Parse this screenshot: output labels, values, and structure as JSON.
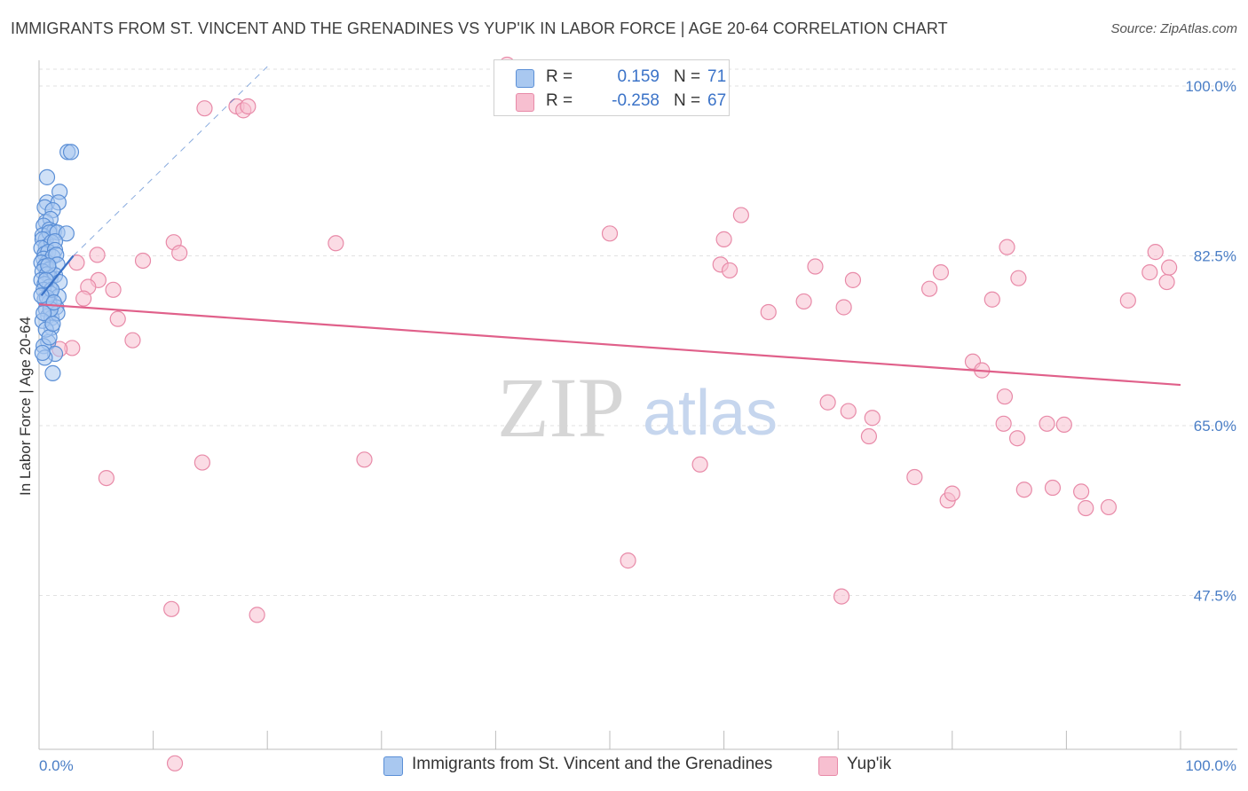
{
  "title": "IMMIGRANTS FROM ST. VINCENT AND THE GRENADINES VS YUP'IK IN LABOR FORCE | AGE 20-64 CORRELATION CHART",
  "source": "Source: ZipAtlas.com",
  "watermark": {
    "zip": "ZIP",
    "atlas": "atlas"
  },
  "legend": {
    "r_label": "R =",
    "n_label": "N =",
    "rows": [
      {
        "r": "0.159",
        "n": "71"
      },
      {
        "r": "-0.258",
        "n": "67"
      }
    ]
  },
  "bottom_legend": [
    "Immigrants from St. Vincent and the Grenadines",
    "Yup'ik"
  ],
  "colors": {
    "blue_fill": "#a9c8f0",
    "blue_stroke": "#5b8fd6",
    "blue_line": "#3b73c8",
    "pink_fill": "#f7bfd0",
    "pink_stroke": "#e88aa8",
    "pink_line": "#e0608a",
    "tick_text": "#4a7ec6",
    "grid": "#e2e2e2"
  },
  "chart_data": {
    "type": "scatter",
    "title": "IMMIGRANTS FROM ST. VINCENT AND THE GRENADINES VS YUP'IK IN LABOR FORCE | AGE 20-64 CORRELATION CHART",
    "xlabel": "",
    "ylabel": "In Labor Force | Age 20-64",
    "xlim": [
      0,
      100
    ],
    "ylim": [
      30,
      102
    ],
    "x_tick_labels": [
      "0.0%",
      "100.0%"
    ],
    "y_ticks": [
      47.5,
      65.0,
      82.5,
      100.0
    ],
    "y_tick_labels": [
      "47.5%",
      "65.0%",
      "82.5%",
      "100.0%"
    ],
    "grid": true,
    "legend_position": "top-center",
    "series": [
      {
        "name": "Immigrants from St. Vincent and the Grenadines",
        "color": "#a9c8f0",
        "points": [
          [
            2.5,
            93.2
          ],
          [
            2.8,
            93.2
          ],
          [
            0.7,
            90.6
          ],
          [
            1.8,
            89.1
          ],
          [
            0.7,
            88.0
          ],
          [
            1.7,
            88.0
          ],
          [
            0.5,
            87.5
          ],
          [
            1.2,
            87.2
          ],
          [
            0.6,
            86.0
          ],
          [
            1.0,
            86.3
          ],
          [
            0.4,
            85.6
          ],
          [
            0.9,
            85.2
          ],
          [
            1.3,
            85.0
          ],
          [
            0.3,
            84.6
          ],
          [
            0.6,
            84.2
          ],
          [
            0.9,
            84.9
          ],
          [
            1.6,
            84.9
          ],
          [
            2.4,
            84.8
          ],
          [
            0.3,
            84.2
          ],
          [
            0.6,
            83.4
          ],
          [
            1.1,
            83.9
          ],
          [
            1.4,
            84.0
          ],
          [
            0.2,
            83.3
          ],
          [
            0.5,
            82.7
          ],
          [
            0.8,
            82.9
          ],
          [
            1.4,
            83.1
          ],
          [
            0.4,
            82.2
          ],
          [
            0.7,
            81.8
          ],
          [
            1.2,
            82.4
          ],
          [
            1.5,
            82.6
          ],
          [
            0.2,
            81.8
          ],
          [
            0.5,
            81.4
          ],
          [
            0.9,
            81.1
          ],
          [
            1.6,
            81.6
          ],
          [
            0.3,
            80.9
          ],
          [
            0.7,
            80.6
          ],
          [
            1.0,
            80.2
          ],
          [
            1.4,
            80.5
          ],
          [
            0.2,
            80.0
          ],
          [
            0.5,
            79.6
          ],
          [
            0.9,
            79.3
          ],
          [
            1.8,
            79.8
          ],
          [
            0.4,
            79.0
          ],
          [
            1.0,
            78.6
          ],
          [
            1.7,
            78.3
          ],
          [
            0.5,
            78.0
          ],
          [
            0.9,
            77.7
          ],
          [
            0.6,
            77.0
          ],
          [
            1.5,
            77.2
          ],
          [
            0.8,
            76.3
          ],
          [
            1.1,
            76.1
          ],
          [
            1.6,
            76.6
          ],
          [
            1.1,
            75.1
          ],
          [
            0.8,
            73.6
          ],
          [
            0.4,
            73.2
          ],
          [
            1.4,
            72.4
          ],
          [
            0.5,
            72.0
          ],
          [
            0.3,
            72.5
          ],
          [
            1.2,
            70.4
          ],
          [
            1.0,
            77.0
          ],
          [
            0.3,
            75.8
          ],
          [
            0.6,
            74.9
          ],
          [
            0.9,
            74.1
          ],
          [
            0.4,
            76.6
          ],
          [
            0.7,
            78.2
          ],
          [
            1.1,
            79.0
          ],
          [
            0.2,
            78.4
          ],
          [
            1.3,
            77.7
          ],
          [
            0.6,
            80.0
          ],
          [
            0.8,
            81.5
          ],
          [
            1.2,
            75.5
          ]
        ]
      },
      {
        "name": "Yup'ik",
        "color": "#f7bfd0",
        "points": [
          [
            41.0,
            102.2
          ],
          [
            14.5,
            97.7
          ],
          [
            17.3,
            97.9
          ],
          [
            17.9,
            97.5
          ],
          [
            18.3,
            97.9
          ],
          [
            61.5,
            86.7
          ],
          [
            60.0,
            84.2
          ],
          [
            50.0,
            84.8
          ],
          [
            26.0,
            83.8
          ],
          [
            11.8,
            83.9
          ],
          [
            84.8,
            83.4
          ],
          [
            12.3,
            82.8
          ],
          [
            5.1,
            82.6
          ],
          [
            9.1,
            82.0
          ],
          [
            3.3,
            81.8
          ],
          [
            59.7,
            81.6
          ],
          [
            68.0,
            81.4
          ],
          [
            79.0,
            80.8
          ],
          [
            97.3,
            80.8
          ],
          [
            5.2,
            80.0
          ],
          [
            71.3,
            80.0
          ],
          [
            98.8,
            79.8
          ],
          [
            4.3,
            79.3
          ],
          [
            6.5,
            79.0
          ],
          [
            3.9,
            78.1
          ],
          [
            83.5,
            78.0
          ],
          [
            95.4,
            77.9
          ],
          [
            67.0,
            77.8
          ],
          [
            70.5,
            77.2
          ],
          [
            63.9,
            76.7
          ],
          [
            6.9,
            76.0
          ],
          [
            8.2,
            73.8
          ],
          [
            2.9,
            73.0
          ],
          [
            1.8,
            72.9
          ],
          [
            81.8,
            71.6
          ],
          [
            82.6,
            70.7
          ],
          [
            84.6,
            68.0
          ],
          [
            69.1,
            67.4
          ],
          [
            70.9,
            66.5
          ],
          [
            73.0,
            65.8
          ],
          [
            84.5,
            65.2
          ],
          [
            88.3,
            65.2
          ],
          [
            89.8,
            65.1
          ],
          [
            72.7,
            63.9
          ],
          [
            85.7,
            63.7
          ],
          [
            14.3,
            61.2
          ],
          [
            28.5,
            61.5
          ],
          [
            57.9,
            61.0
          ],
          [
            5.9,
            59.6
          ],
          [
            76.7,
            59.7
          ],
          [
            88.8,
            58.6
          ],
          [
            86.3,
            58.4
          ],
          [
            91.3,
            58.2
          ],
          [
            79.6,
            57.3
          ],
          [
            80.0,
            58.0
          ],
          [
            93.7,
            56.6
          ],
          [
            91.7,
            56.5
          ],
          [
            51.6,
            51.1
          ],
          [
            70.3,
            47.4
          ],
          [
            11.6,
            46.1
          ],
          [
            19.1,
            45.5
          ],
          [
            11.9,
            30.2
          ],
          [
            97.8,
            82.9
          ],
          [
            99.0,
            81.3
          ],
          [
            85.8,
            80.2
          ],
          [
            78.0,
            79.1
          ],
          [
            60.5,
            81.0
          ]
        ]
      }
    ],
    "trend_lines": [
      {
        "series": "Immigrants from St. Vincent and the Grenadines",
        "style": "solid",
        "x": [
          0.2,
          3.0
        ],
        "y": [
          78.4,
          82.5
        ]
      },
      {
        "series": "Immigrants from St. Vincent and the Grenadines",
        "style": "dashed",
        "x": [
          3.0,
          20.0
        ],
        "y": [
          82.5,
          102.0
        ]
      },
      {
        "series": "Yup'ik",
        "style": "solid",
        "x": [
          0.0,
          100.0
        ],
        "y": [
          77.5,
          69.2
        ]
      }
    ]
  }
}
